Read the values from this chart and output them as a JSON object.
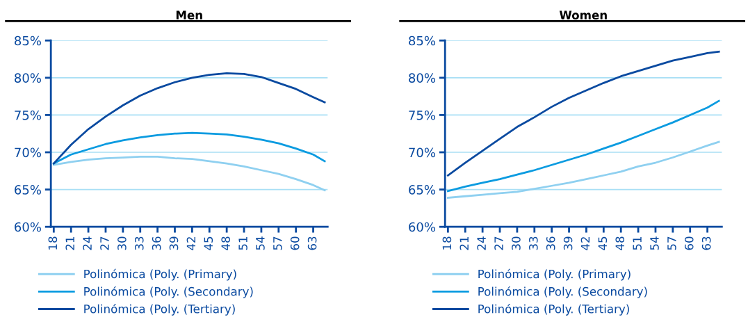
{
  "chart_data": [
    {
      "type": "line",
      "title": "Men",
      "x": [
        18,
        21,
        24,
        27,
        30,
        33,
        36,
        39,
        42,
        45,
        48,
        51,
        54,
        57,
        60,
        63,
        65
      ],
      "series": [
        {
          "name": "Polinómica (Poly. (Primary)",
          "color": "#8fd0f0",
          "values": [
            68.3,
            68.7,
            69.0,
            69.2,
            69.3,
            69.4,
            69.4,
            69.2,
            69.1,
            68.8,
            68.5,
            68.1,
            67.6,
            67.1,
            66.4,
            65.6,
            64.9
          ]
        },
        {
          "name": "Polinómica (Poly. (Secondary)",
          "color": "#0b9be0",
          "values": [
            68.5,
            69.7,
            70.4,
            71.1,
            71.6,
            72.0,
            72.3,
            72.5,
            72.6,
            72.5,
            72.4,
            72.1,
            71.7,
            71.2,
            70.5,
            69.7,
            68.8
          ]
        },
        {
          "name": "Polinómica (Poly. (Tertiary)",
          "color": "#0a4aa0",
          "values": [
            68.5,
            71.0,
            73.1,
            74.8,
            76.3,
            77.6,
            78.6,
            79.4,
            80.0,
            80.4,
            80.6,
            80.5,
            80.1,
            79.3,
            78.5,
            77.4,
            76.7
          ]
        }
      ],
      "xlim": [
        17.5,
        65.5
      ],
      "xticks": [
        18,
        21,
        24,
        27,
        30,
        33,
        36,
        39,
        42,
        45,
        48,
        51,
        54,
        57,
        60,
        63
      ],
      "ylim": [
        60,
        85
      ],
      "yticks": [
        {
          "value": 60,
          "label": "60%"
        },
        {
          "value": 65,
          "label": "65%"
        },
        {
          "value": 70,
          "label": "70%"
        },
        {
          "value": 75,
          "label": "75%"
        },
        {
          "value": 80,
          "label": "80%"
        },
        {
          "value": 85,
          "label": "85%"
        }
      ],
      "grid": "y",
      "legend": "bottom",
      "marker": "none",
      "line_style": "solid"
    },
    {
      "type": "line",
      "title": "Women",
      "x": [
        18,
        21,
        24,
        27,
        30,
        33,
        36,
        39,
        42,
        45,
        48,
        51,
        54,
        57,
        60,
        63,
        65
      ],
      "series": [
        {
          "name": "Polinómica (Poly. (Primary)",
          "color": "#8fd0f0",
          "values": [
            63.9,
            64.1,
            64.3,
            64.5,
            64.7,
            65.1,
            65.5,
            65.9,
            66.4,
            66.9,
            67.4,
            68.1,
            68.6,
            69.3,
            70.1,
            70.9,
            71.4
          ]
        },
        {
          "name": "Polinómica (Poly. (Secondary)",
          "color": "#0b9be0",
          "values": [
            64.8,
            65.4,
            65.9,
            66.4,
            67.0,
            67.6,
            68.3,
            69.0,
            69.7,
            70.5,
            71.3,
            72.2,
            73.1,
            74.0,
            75.0,
            76.0,
            76.9
          ]
        },
        {
          "name": "Polinómica (Poly. (Tertiary)",
          "color": "#0a4aa0",
          "values": [
            66.9,
            68.6,
            70.2,
            71.8,
            73.4,
            74.7,
            76.1,
            77.3,
            78.3,
            79.3,
            80.2,
            80.9,
            81.6,
            82.3,
            82.8,
            83.3,
            83.5
          ]
        }
      ],
      "xlim": [
        17.5,
        65.5
      ],
      "xticks": [
        18,
        21,
        24,
        27,
        30,
        33,
        36,
        39,
        42,
        45,
        48,
        51,
        54,
        57,
        60,
        63
      ],
      "ylim": [
        60,
        85
      ],
      "yticks": [
        {
          "value": 60,
          "label": "60%"
        },
        {
          "value": 65,
          "label": "65%"
        },
        {
          "value": 70,
          "label": "70%"
        },
        {
          "value": 75,
          "label": "75%"
        },
        {
          "value": 80,
          "label": "80%"
        },
        {
          "value": 85,
          "label": "85%"
        }
      ],
      "grid": "y",
      "legend": "bottom",
      "marker": "none",
      "line_style": "solid"
    }
  ]
}
